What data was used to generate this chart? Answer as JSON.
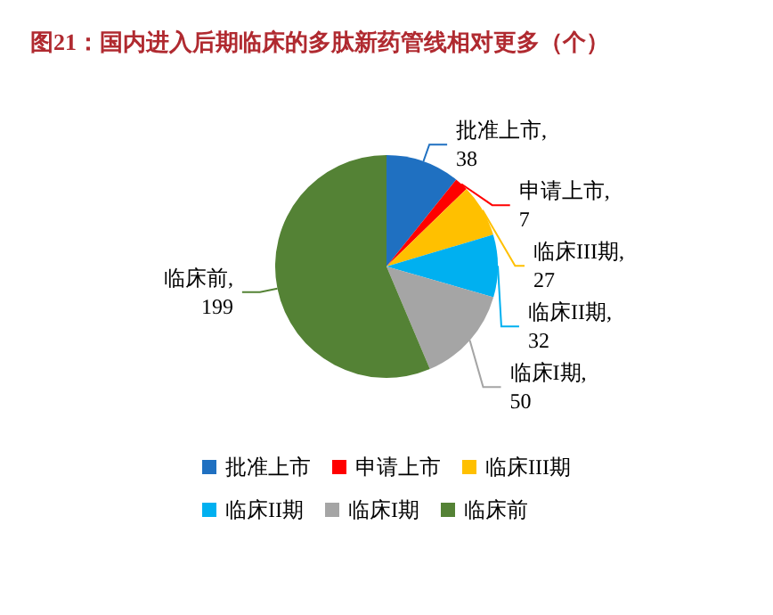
{
  "chart_data": {
    "type": "pie",
    "title": "图21：国内进入后期临床的多肽新药管线相对更多（个）",
    "categories": [
      "批准上市",
      "申请上市",
      "临床III期",
      "临床II期",
      "临床I期",
      "临床前"
    ],
    "values": [
      38,
      7,
      27,
      32,
      50,
      199
    ],
    "colors": [
      "#1f70c1",
      "#ff0000",
      "#ffc000",
      "#00b0f0",
      "#a5a5a5",
      "#548235"
    ],
    "value_labels": [
      "批准上市, 38",
      "申请上市, 7",
      "临床III期, 27",
      "临床II期, 32",
      "临床I期, 50",
      "临床前, 199"
    ],
    "legend": "bottom"
  }
}
